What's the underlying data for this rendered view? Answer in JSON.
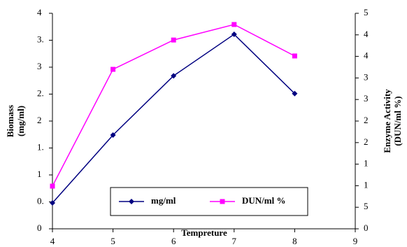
{
  "chart_data": {
    "type": "line",
    "xlabel": "Tempreture",
    "ylabel": [
      "Biomass",
      "(mg/ml)"
    ],
    "y2label": [
      "Enzyme Activity",
      "(DUN/ml %)"
    ],
    "x": [
      4,
      5,
      6,
      7,
      8
    ],
    "xlim": [
      4,
      9
    ],
    "xticks": [
      4,
      5,
      6,
      7,
      8,
      9
    ],
    "ylim": [
      0,
      4
    ],
    "yticks": [
      0,
      {
        "value": 0.5,
        "label": "0."
      },
      1,
      {
        "value": 1.5,
        "label": "1."
      },
      2,
      {
        "value": 2.5,
        "label": "2."
      },
      3,
      {
        "value": 3.5,
        "label": "3."
      },
      4
    ],
    "y2lim": [
      0,
      5
    ],
    "y2ticks": [
      0,
      {
        "value": 0.5,
        "label": "5"
      },
      1,
      {
        "value": 1.5,
        "label": "1"
      },
      2,
      {
        "value": 2.5,
        "label": "2"
      },
      3,
      {
        "value": 3.5,
        "label": "3"
      },
      4,
      {
        "value": 4.5,
        "label": "4"
      },
      5
    ],
    "series": [
      {
        "name": "mg/ml",
        "color": "#000080",
        "marker": "diamond",
        "values": [
          0.48,
          1.74,
          2.84,
          3.61,
          2.51
        ]
      },
      {
        "name": "DUN/ml %",
        "color": "#ff00ff",
        "marker": "square",
        "axis": "y2",
        "values": [
          0.99,
          3.7,
          4.38,
          4.74,
          4.01
        ]
      }
    ]
  }
}
